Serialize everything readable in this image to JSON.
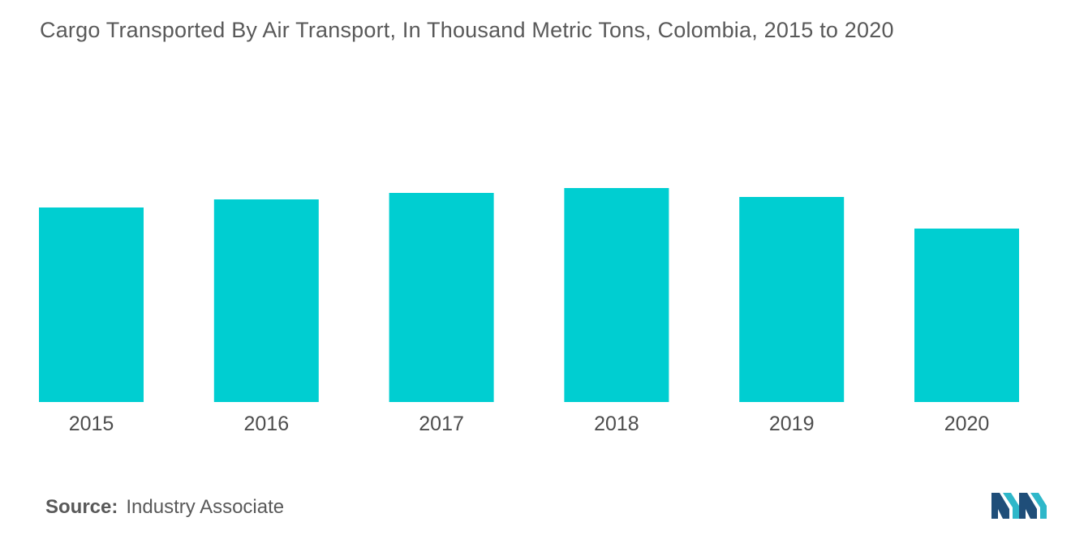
{
  "chart_data": {
    "type": "bar",
    "title": "Cargo Transported By Air Transport, In Thousand Metric Tons, Colombia, 2015 to 2020",
    "categories": [
      "2015",
      "2016",
      "2017",
      "2018",
      "2019",
      "2020"
    ],
    "values": [
      240,
      250,
      258,
      264,
      253,
      214
    ],
    "ylim": [
      0,
      264
    ],
    "xlabel": "",
    "ylabel": "",
    "grid": false,
    "bar_color": "#00CED1"
  },
  "source": {
    "label": "Source:",
    "value": "Industry Associate"
  },
  "colors": {
    "title": "#595959",
    "logo_dark": "#1f4e79",
    "logo_light": "#2eb7c9"
  }
}
